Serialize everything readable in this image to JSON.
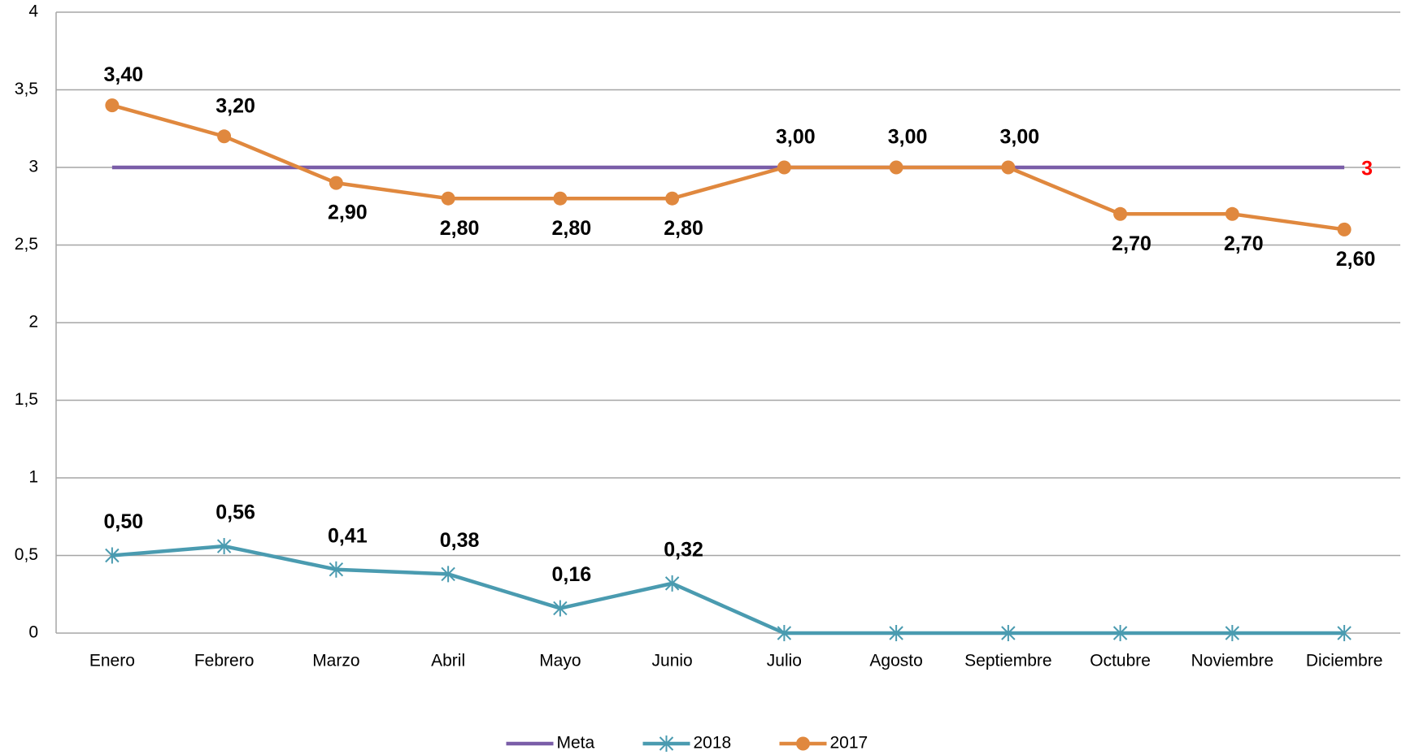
{
  "chart_data": {
    "type": "line",
    "categories": [
      "Enero",
      "Febrero",
      "Marzo",
      "Abril",
      "Mayo",
      "Junio",
      "Julio",
      "Agosto",
      "Septiembre",
      "Octubre",
      "Noviembre",
      "Diciembre"
    ],
    "series": [
      {
        "name": "Meta",
        "color": "#7a5da8",
        "marker": "none",
        "label_color": "#ff0000",
        "values": [
          3,
          3,
          3,
          3,
          3,
          3,
          3,
          3,
          3,
          3,
          3,
          3
        ],
        "value_labels": [
          null,
          null,
          null,
          null,
          null,
          null,
          null,
          null,
          null,
          null,
          null,
          "3"
        ]
      },
      {
        "name": "2018",
        "color": "#4a9bb0",
        "marker": "asterisk",
        "label_color": "#000000",
        "values": [
          0.5,
          0.56,
          0.41,
          0.38,
          0.16,
          0.32,
          0,
          0,
          0,
          0,
          0,
          0
        ],
        "value_labels": [
          "0,50",
          "0,56",
          "0,41",
          "0,38",
          "0,16",
          "0,32",
          null,
          null,
          null,
          null,
          null,
          null
        ]
      },
      {
        "name": "2017",
        "color": "#e0883e",
        "marker": "circle",
        "label_color": "#000000",
        "values": [
          3.4,
          3.2,
          2.9,
          2.8,
          2.8,
          2.8,
          3.0,
          3.0,
          3.0,
          2.7,
          2.7,
          2.6
        ],
        "value_labels": [
          "3,40",
          "3,20",
          "2,90",
          "2,80",
          "2,80",
          "2,80",
          "3,00",
          "3,00",
          "3,00",
          "2,70",
          "2,70",
          "2,60"
        ]
      }
    ],
    "ylim": [
      0,
      4
    ],
    "yticks": [
      0,
      {
        "value": 0.5,
        "label": "0,5"
      },
      1,
      {
        "value": 1.5,
        "label": "1,5"
      },
      2,
      {
        "value": 2.5,
        "label": "2,5"
      },
      3,
      {
        "value": 3.5,
        "label": "3,5"
      },
      4
    ],
    "grid": true,
    "legend": "bottom"
  }
}
